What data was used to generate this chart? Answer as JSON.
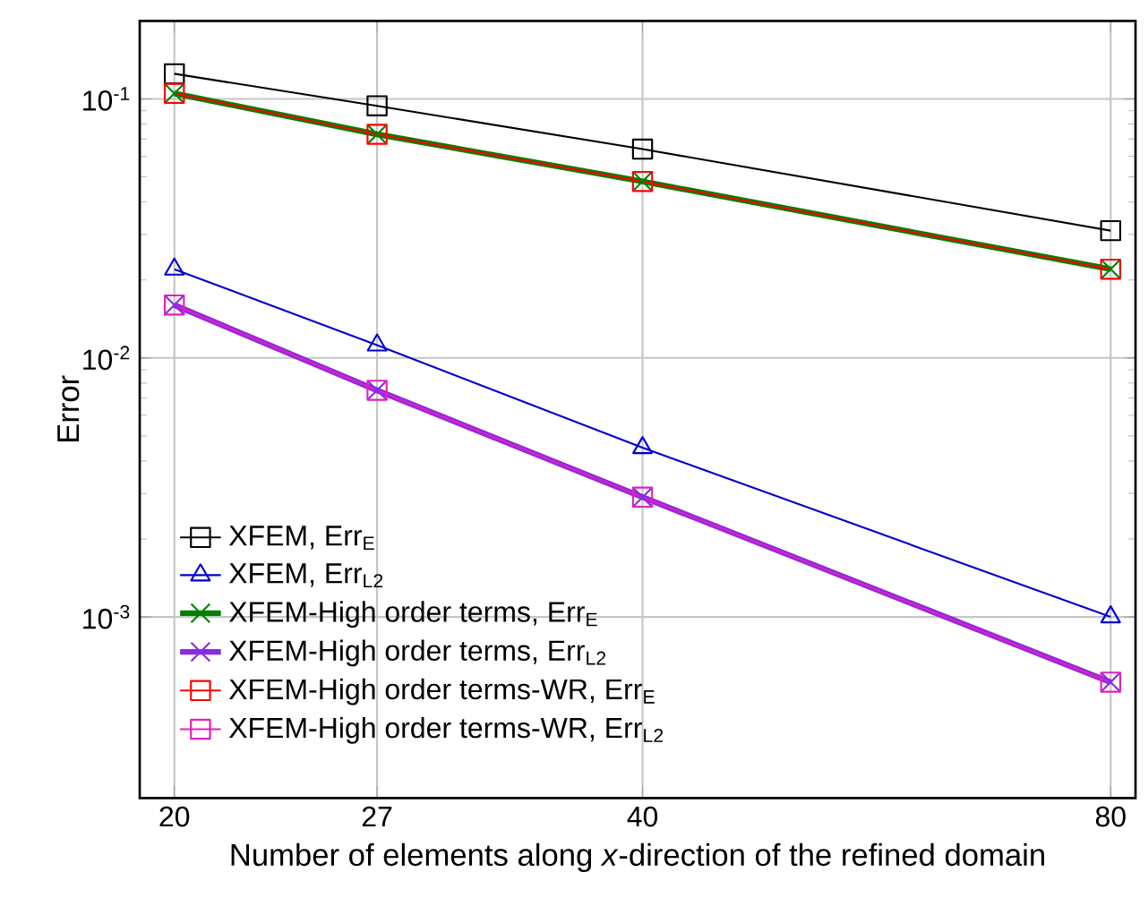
{
  "chart_data": {
    "type": "line",
    "xlabel": "Number of elements along *x*-direction of the refined domain",
    "ylabel": "Error",
    "log": "xy",
    "grid": true,
    "legend": "bottom left",
    "xlim": [
      19,
      83
    ],
    "ylim": [
      0.0002,
      0.2
    ],
    "x": [
      20,
      27,
      40,
      80
    ],
    "xticks": [
      20,
      27,
      40,
      80
    ],
    "yticks": [
      {
        "value": 0.001,
        "label": "10$^{-3}$"
      },
      {
        "value": 0.01,
        "label": "10$^{-2}$"
      },
      {
        "value": 0.1,
        "label": "10$^{-1}$"
      }
    ],
    "line_style": "solid",
    "series": [
      {
        "name": "XFEM, Err$_{E}$",
        "color": "#000000",
        "marker": "square",
        "values": [
          0.125,
          0.094,
          0.064,
          0.031
        ]
      },
      {
        "name": "XFEM, Err$_{L2}$",
        "color": "#0000cc",
        "marker": "triangle",
        "values": [
          0.022,
          0.0112,
          0.0045,
          0.001
        ]
      },
      {
        "name": "XFEM-High order terms, Err$_{E}$",
        "color": "#008000",
        "marker": "cross",
        "values": [
          0.105,
          0.073,
          0.048,
          0.022
        ]
      },
      {
        "name": "XFEM-High order terms, Err$_{L2}$",
        "color": "#8a2be2",
        "marker": "cross",
        "values": [
          0.016,
          0.0075,
          0.0029,
          0.00056
        ]
      },
      {
        "name": "XFEM-High order terms-WR, Err$_{E}$",
        "color": "#ff0000",
        "marker": "square",
        "values": [
          0.105,
          0.073,
          0.048,
          0.022
        ]
      },
      {
        "name": "XFEM-High order terms-WR, Err$_{L2}$",
        "color": "#e020c0",
        "marker": "square",
        "values": [
          0.016,
          0.0075,
          0.0029,
          0.00056
        ]
      }
    ]
  }
}
